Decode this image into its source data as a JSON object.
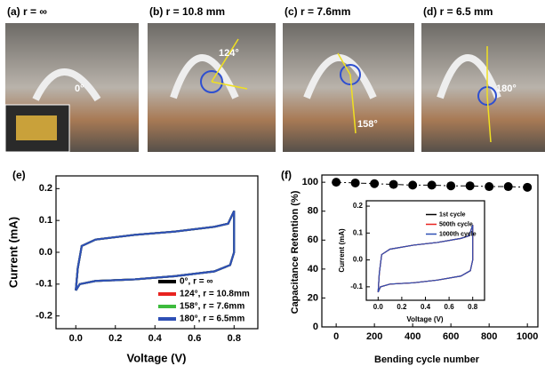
{
  "photos": [
    {
      "label": "(a) r = ∞",
      "angle": "0°"
    },
    {
      "label": "(b) r = 10.8 mm",
      "angle": "124°"
    },
    {
      "label": "(c) r = 7.6mm",
      "angle": "158°"
    },
    {
      "label": "(d) r = 6.5 mm",
      "angle": "180°"
    }
  ],
  "chart_data": [
    {
      "type": "line",
      "title": "(e)",
      "xlabel": "Voltage (V)",
      "ylabel": "Current (mA)",
      "xlim": [
        -0.1,
        0.92
      ],
      "ylim": [
        -0.24,
        0.24
      ],
      "xticks": [
        {
          "value": 0,
          "label": "0.0"
        },
        0.2,
        0.4,
        0.6,
        0.8
      ],
      "yticks": [
        -0.2,
        -0.1,
        {
          "value": 0,
          "label": "0.0"
        },
        0.1,
        0.2
      ],
      "legend": "lower right",
      "x": [
        0,
        0.02,
        0.1,
        0.3,
        0.5,
        0.7,
        0.78,
        0.8,
        0.8,
        0.77,
        0.7,
        0.5,
        0.3,
        0.1,
        0.03,
        0.01,
        0
      ],
      "series": [
        {
          "name": "0°, r = ∞",
          "color": "#000000",
          "values": [
            -0.12,
            -0.1,
            -0.09,
            -0.085,
            -0.075,
            -0.06,
            -0.04,
            0,
            0.13,
            0.09,
            0.08,
            0.065,
            0.055,
            0.04,
            0.02,
            -0.05,
            -0.12
          ]
        },
        {
          "name": "124°, r = 10.8mm",
          "color": "#e8231f",
          "values": [
            -0.12,
            -0.1,
            -0.09,
            -0.085,
            -0.075,
            -0.06,
            -0.04,
            0,
            0.13,
            0.09,
            0.08,
            0.065,
            0.055,
            0.04,
            0.02,
            -0.05,
            -0.12
          ]
        },
        {
          "name": "158°, r = 7.6mm",
          "color": "#3dbb3d",
          "values": [
            -0.12,
            -0.1,
            -0.09,
            -0.085,
            -0.075,
            -0.06,
            -0.04,
            0,
            0.13,
            0.09,
            0.08,
            0.065,
            0.055,
            0.04,
            0.02,
            -0.05,
            -0.12
          ]
        },
        {
          "name": "180°, r = 6.5mm",
          "color": "#2e4fb5",
          "values": [
            -0.12,
            -0.1,
            -0.09,
            -0.085,
            -0.075,
            -0.06,
            -0.04,
            0,
            0.13,
            0.09,
            0.08,
            0.065,
            0.055,
            0.04,
            0.02,
            -0.05,
            -0.12
          ]
        }
      ]
    },
    {
      "type": "scatter",
      "title": "(f)",
      "xlabel": "Bending cycle number",
      "ylabel": "Capacitance Retention (%)",
      "xlim": [
        -75,
        1055
      ],
      "ylim": [
        0,
        105
      ],
      "xticks": [
        0,
        200,
        400,
        600,
        800,
        1000
      ],
      "yticks": [
        0,
        20,
        40,
        60,
        80,
        100
      ],
      "x": [
        0,
        100,
        200,
        300,
        400,
        500,
        600,
        700,
        800,
        900,
        1000
      ],
      "series": [
        {
          "color": "#000000",
          "values": [
            100,
            99.5,
            99,
            98.5,
            98,
            98,
            97.5,
            97.5,
            97,
            97,
            96.5
          ]
        }
      ]
    },
    {
      "type": "line",
      "xlabel": "Voltage (V)",
      "ylabel": "Current (mA)",
      "xlim": [
        -0.1,
        0.9
      ],
      "ylim": [
        -0.15,
        0.22
      ],
      "xticks": [
        {
          "value": 0,
          "label": "0.0"
        },
        0.2,
        0.4,
        0.6,
        0.8
      ],
      "yticks": [
        -0.1,
        {
          "value": 0,
          "label": "0.0"
        },
        0.1,
        0.2
      ],
      "legend": "upper right",
      "x": [
        0,
        0.02,
        0.1,
        0.3,
        0.5,
        0.7,
        0.78,
        0.8,
        0.8,
        0.77,
        0.7,
        0.5,
        0.3,
        0.1,
        0.03,
        0.01,
        0
      ],
      "series": [
        {
          "name": "1st cycle",
          "color": "#000000",
          "values": [
            -0.12,
            -0.1,
            -0.09,
            -0.085,
            -0.075,
            -0.06,
            -0.04,
            0,
            0.13,
            0.09,
            0.08,
            0.065,
            0.055,
            0.04,
            0.02,
            -0.05,
            -0.12
          ]
        },
        {
          "name": "500th cycle",
          "color": "#e8231f",
          "values": [
            -0.12,
            -0.1,
            -0.09,
            -0.085,
            -0.075,
            -0.06,
            -0.04,
            0,
            0.13,
            0.09,
            0.08,
            0.065,
            0.055,
            0.04,
            0.02,
            -0.05,
            -0.12
          ]
        },
        {
          "name": "1000th cycle",
          "color": "#2e4fb5",
          "values": [
            -0.12,
            -0.1,
            -0.09,
            -0.085,
            -0.075,
            -0.06,
            -0.04,
            0,
            0.13,
            0.09,
            0.08,
            0.065,
            0.055,
            0.04,
            0.02,
            -0.05,
            -0.12
          ]
        }
      ]
    }
  ]
}
